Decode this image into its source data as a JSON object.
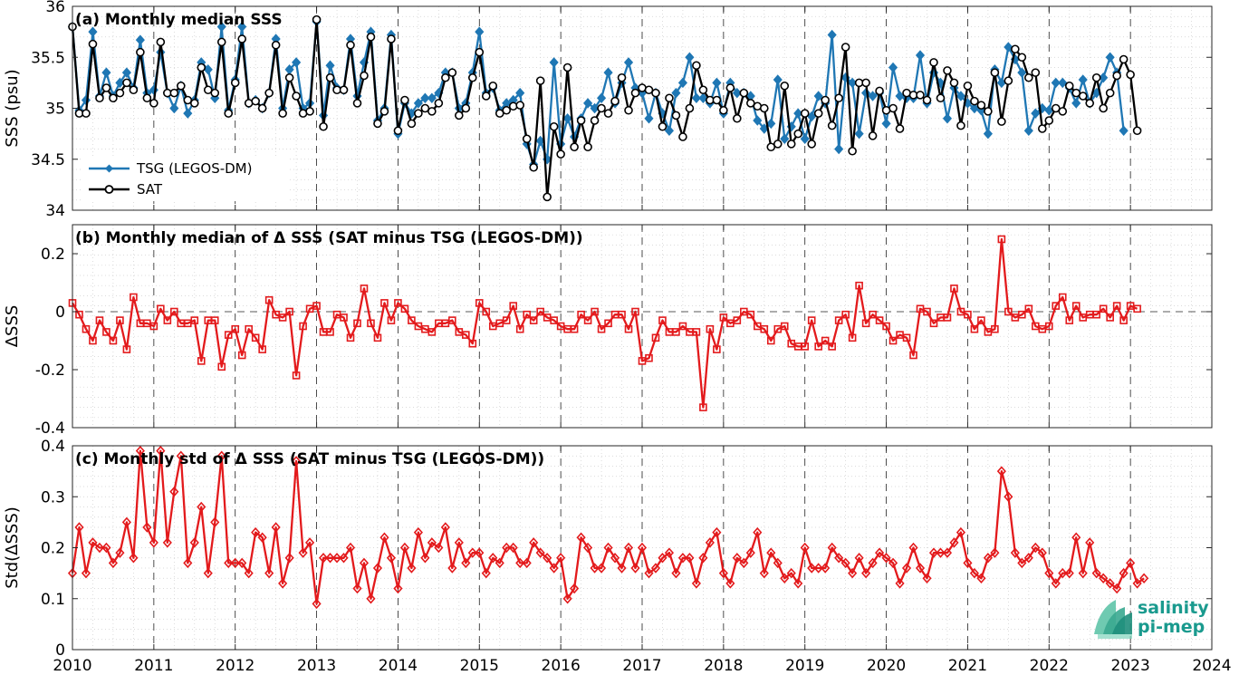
{
  "chart_data": [
    {
      "type": "line",
      "title": "(a) Monthly median SSS",
      "ylabel": "SSS (psu)",
      "xlim": [
        2010,
        2024
      ],
      "ylim": [
        34,
        36
      ],
      "yticks": [
        34,
        34.5,
        35,
        35.5,
        36
      ],
      "ytick_labels": [
        "34",
        "34.5",
        "35",
        "35.5",
        "36"
      ],
      "grid": "minor dotted, yearly dashed verticals",
      "legend_position": "lower-left",
      "series": [
        {
          "name": "TSG (LEGOS-DM)",
          "color": "#1f77b4",
          "marker": "diamond",
          "values": [
            35.8,
            34.98,
            35.08,
            35.75,
            35.12,
            35.35,
            35.12,
            35.25,
            35.35,
            35.2,
            35.67,
            35.15,
            35.18,
            35.55,
            35.15,
            35.0,
            35.22,
            34.95,
            35.08,
            35.45,
            35.38,
            35.1,
            35.8,
            34.98,
            35.28,
            35.8,
            35.05,
            35.08,
            35.0,
            35.15,
            35.68,
            35.0,
            35.38,
            35.45,
            35.0,
            35.05,
            35.85,
            34.93,
            35.42,
            35.2,
            35.18,
            35.68,
            35.12,
            35.45,
            35.75,
            34.88,
            35.0,
            35.72,
            34.75,
            35.05,
            34.95,
            35.05,
            35.1,
            35.1,
            35.15,
            35.35,
            35.35,
            35.0,
            35.05,
            35.35,
            35.75,
            35.15,
            35.2,
            34.98,
            35.05,
            35.08,
            35.15,
            34.65,
            34.45,
            34.68,
            34.5,
            35.45,
            34.65,
            34.9,
            34.72,
            34.9,
            35.05,
            35.0,
            35.1,
            35.35,
            35.05,
            35.25,
            35.45,
            35.2,
            35.15,
            34.9,
            35.15,
            34.95,
            34.78,
            35.15,
            35.25,
            35.5,
            35.1,
            35.1,
            35.05,
            35.25,
            34.95,
            35.25,
            35.15,
            35.15,
            35.12,
            34.88,
            34.8,
            34.85,
            35.28,
            34.7,
            34.82,
            34.95,
            34.7,
            34.92,
            35.12,
            35.05,
            35.72,
            34.6,
            35.3,
            35.25,
            34.75,
            35.15,
            35.12,
            35.15,
            34.85,
            35.4,
            35.12,
            35.1,
            35.1,
            35.52,
            35.05,
            35.35,
            35.25,
            34.9,
            35.2,
            35.12,
            35.05,
            35.0,
            34.98,
            34.75,
            35.38,
            35.25,
            35.6,
            35.48,
            35.35,
            34.78,
            34.95,
            35.0,
            34.98,
            35.25,
            35.25,
            35.2,
            35.05,
            35.28,
            35.05,
            35.15,
            35.3,
            35.5,
            35.35,
            34.78
          ]
        },
        {
          "name": "SAT",
          "color": "#000000",
          "marker": "circle",
          "values": [
            35.8,
            34.95,
            34.95,
            35.63,
            35.1,
            35.2,
            35.1,
            35.15,
            35.25,
            35.18,
            35.55,
            35.1,
            35.05,
            35.65,
            35.15,
            35.15,
            35.22,
            35.08,
            35.05,
            35.4,
            35.18,
            35.15,
            35.65,
            34.95,
            35.25,
            35.68,
            35.05,
            35.07,
            35.0,
            35.15,
            35.62,
            34.95,
            35.3,
            35.12,
            34.95,
            34.97,
            35.87,
            34.82,
            35.3,
            35.18,
            35.18,
            35.62,
            35.05,
            35.32,
            35.7,
            34.85,
            34.97,
            35.68,
            34.78,
            35.08,
            34.85,
            34.95,
            35.0,
            34.97,
            35.05,
            35.3,
            35.35,
            34.93,
            35.0,
            35.3,
            35.55,
            35.12,
            35.22,
            34.95,
            34.98,
            35.02,
            35.03,
            34.7,
            34.42,
            35.27,
            34.13,
            34.82,
            34.55,
            35.4,
            34.62,
            34.88,
            34.62,
            34.88,
            35.0,
            34.95,
            35.07,
            35.3,
            34.98,
            35.15,
            35.2,
            35.18,
            35.15,
            34.82,
            35.1,
            34.93,
            34.72,
            35.0,
            35.42,
            35.18,
            35.08,
            35.08,
            34.98,
            35.2,
            34.9,
            35.15,
            35.05,
            35.02,
            35.0,
            34.62,
            34.65,
            35.22,
            34.65,
            34.75,
            34.95,
            34.65,
            34.95,
            35.08,
            34.83,
            35.1,
            35.6,
            34.58,
            35.25,
            35.25,
            34.73,
            35.17,
            34.98,
            35.0,
            34.8,
            35.15,
            35.13,
            35.13,
            35.08,
            35.45,
            35.1,
            35.37,
            35.25,
            34.83,
            35.22,
            35.07,
            35.03,
            34.97,
            35.35,
            34.87,
            35.27,
            35.58,
            35.5,
            35.3,
            35.35,
            34.8,
            34.88,
            35.0,
            34.97,
            35.22,
            35.15,
            35.12,
            35.05,
            35.3,
            35.0,
            35.15,
            35.32,
            35.48,
            35.33,
            34.78
          ]
        }
      ]
    },
    {
      "type": "line",
      "title": "(b) Monthly median of Δ SSS (SAT minus TSG (LEGOS-DM))",
      "ylabel": "ΔSSS",
      "xlim": [
        2010,
        2024
      ],
      "ylim": [
        -0.4,
        0.3
      ],
      "yticks": [
        -0.4,
        -0.2,
        0,
        0.2
      ],
      "ytick_labels": [
        "-0.4",
        "-0.2",
        "0",
        "0.2"
      ],
      "reference_line": 0,
      "series": [
        {
          "name": "",
          "color": "#e31a1c",
          "marker": "square",
          "values": [
            0.03,
            -0.01,
            -0.06,
            -0.1,
            -0.03,
            -0.07,
            -0.1,
            -0.03,
            -0.13,
            0.05,
            -0.04,
            -0.04,
            -0.05,
            0.01,
            -0.03,
            0.0,
            -0.04,
            -0.04,
            -0.03,
            -0.17,
            -0.03,
            -0.03,
            -0.19,
            -0.08,
            -0.06,
            -0.15,
            -0.06,
            -0.09,
            -0.13,
            0.04,
            -0.01,
            -0.02,
            0.0,
            -0.22,
            -0.05,
            0.01,
            0.02,
            -0.07,
            -0.07,
            -0.01,
            -0.02,
            -0.09,
            -0.04,
            0.08,
            -0.04,
            -0.09,
            0.03,
            -0.03,
            0.03,
            0.01,
            -0.03,
            -0.05,
            -0.06,
            -0.07,
            -0.04,
            -0.04,
            -0.03,
            -0.07,
            -0.08,
            -0.11,
            0.03,
            0.0,
            -0.05,
            -0.04,
            -0.03,
            0.02,
            -0.06,
            -0.01,
            -0.03,
            0.0,
            -0.02,
            -0.03,
            -0.05,
            -0.06,
            -0.06,
            -0.01,
            -0.03,
            0.0,
            -0.06,
            -0.04,
            -0.01,
            -0.01,
            -0.06,
            0.0,
            -0.17,
            -0.16,
            -0.09,
            -0.03,
            -0.07,
            -0.07,
            -0.05,
            -0.07,
            -0.07,
            -0.33,
            -0.06,
            -0.13,
            -0.02,
            -0.04,
            -0.03,
            0.0,
            -0.01,
            -0.05,
            -0.06,
            -0.1,
            -0.06,
            -0.05,
            -0.11,
            -0.12,
            -0.12,
            -0.03,
            -0.12,
            -0.1,
            -0.12,
            -0.03,
            -0.01,
            -0.09,
            0.09,
            -0.04,
            -0.01,
            -0.03,
            -0.05,
            -0.1,
            -0.08,
            -0.09,
            -0.15,
            0.01,
            0.0,
            -0.04,
            -0.02,
            -0.02,
            0.08,
            0.0,
            -0.01,
            -0.06,
            -0.03,
            -0.07,
            -0.06,
            0.25,
            0.0,
            -0.02,
            -0.01,
            0.01,
            -0.05,
            -0.06,
            -0.05,
            0.02,
            0.05,
            -0.03,
            0.02,
            -0.02,
            -0.01,
            -0.01,
            0.01,
            -0.02,
            0.02,
            -0.03,
            0.02,
            0.01
          ]
        }
      ]
    },
    {
      "type": "line",
      "title": "(c) Monthly std of Δ SSS (SAT minus TSG (LEGOS-DM))",
      "ylabel": "Std(ΔSSS)",
      "xlim": [
        2010,
        2024
      ],
      "ylim": [
        0,
        0.4
      ],
      "yticks": [
        0,
        0.1,
        0.2,
        0.3,
        0.4
      ],
      "ytick_labels": [
        "0",
        "0.1",
        "0.2",
        "0.3",
        "0.4"
      ],
      "series": [
        {
          "name": "",
          "color": "#e31a1c",
          "marker": "diamond",
          "values": [
            0.15,
            0.24,
            0.15,
            0.21,
            0.2,
            0.2,
            0.17,
            0.19,
            0.25,
            0.18,
            0.39,
            0.24,
            0.21,
            0.39,
            0.21,
            0.31,
            0.38,
            0.17,
            0.21,
            0.28,
            0.15,
            0.25,
            0.38,
            0.17,
            0.17,
            0.17,
            0.15,
            0.23,
            0.22,
            0.15,
            0.24,
            0.13,
            0.18,
            0.37,
            0.19,
            0.21,
            0.09,
            0.18,
            0.18,
            0.18,
            0.18,
            0.2,
            0.12,
            0.17,
            0.1,
            0.16,
            0.22,
            0.18,
            0.12,
            0.2,
            0.16,
            0.23,
            0.18,
            0.21,
            0.2,
            0.24,
            0.16,
            0.21,
            0.17,
            0.19,
            0.19,
            0.15,
            0.18,
            0.17,
            0.2,
            0.2,
            0.17,
            0.17,
            0.21,
            0.19,
            0.18,
            0.16,
            0.18,
            0.1,
            0.12,
            0.22,
            0.2,
            0.16,
            0.16,
            0.2,
            0.18,
            0.16,
            0.2,
            0.16,
            0.2,
            0.15,
            0.16,
            0.18,
            0.19,
            0.15,
            0.18,
            0.18,
            0.13,
            0.18,
            0.21,
            0.23,
            0.15,
            0.13,
            0.18,
            0.17,
            0.19,
            0.23,
            0.15,
            0.19,
            0.17,
            0.14,
            0.15,
            0.13,
            0.2,
            0.16,
            0.16,
            0.16,
            0.2,
            0.18,
            0.17,
            0.15,
            0.18,
            0.15,
            0.17,
            0.19,
            0.18,
            0.17,
            0.13,
            0.16,
            0.2,
            0.16,
            0.14,
            0.19,
            0.19,
            0.19,
            0.21,
            0.23,
            0.17,
            0.15,
            0.14,
            0.18,
            0.19,
            0.35,
            0.3,
            0.19,
            0.17,
            0.18,
            0.2,
            0.19,
            0.15,
            0.13,
            0.15,
            0.15,
            0.22,
            0.15,
            0.21,
            0.15,
            0.14,
            0.13,
            0.12,
            0.15,
            0.17,
            0.13,
            0.14
          ]
        }
      ]
    }
  ],
  "x_axis": {
    "ticks": [
      2010,
      2011,
      2012,
      2013,
      2014,
      2015,
      2016,
      2017,
      2018,
      2019,
      2020,
      2021,
      2022,
      2023,
      2024
    ],
    "tick_labels": [
      "2010",
      "2011",
      "2012",
      "2013",
      "2014",
      "2015",
      "2016",
      "2017",
      "2018",
      "2019",
      "2020",
      "2021",
      "2022",
      "2023",
      "2024"
    ]
  },
  "data_start_year": 2010,
  "legend": [
    {
      "label": "TSG (LEGOS-DM)",
      "color": "#1f77b4",
      "marker": "diamond"
    },
    {
      "label": "SAT",
      "color": "#000000",
      "marker": "circle"
    }
  ],
  "logo": {
    "line1": "salinity",
    "line2": "pi-mep",
    "color": "#1a9a8e"
  }
}
